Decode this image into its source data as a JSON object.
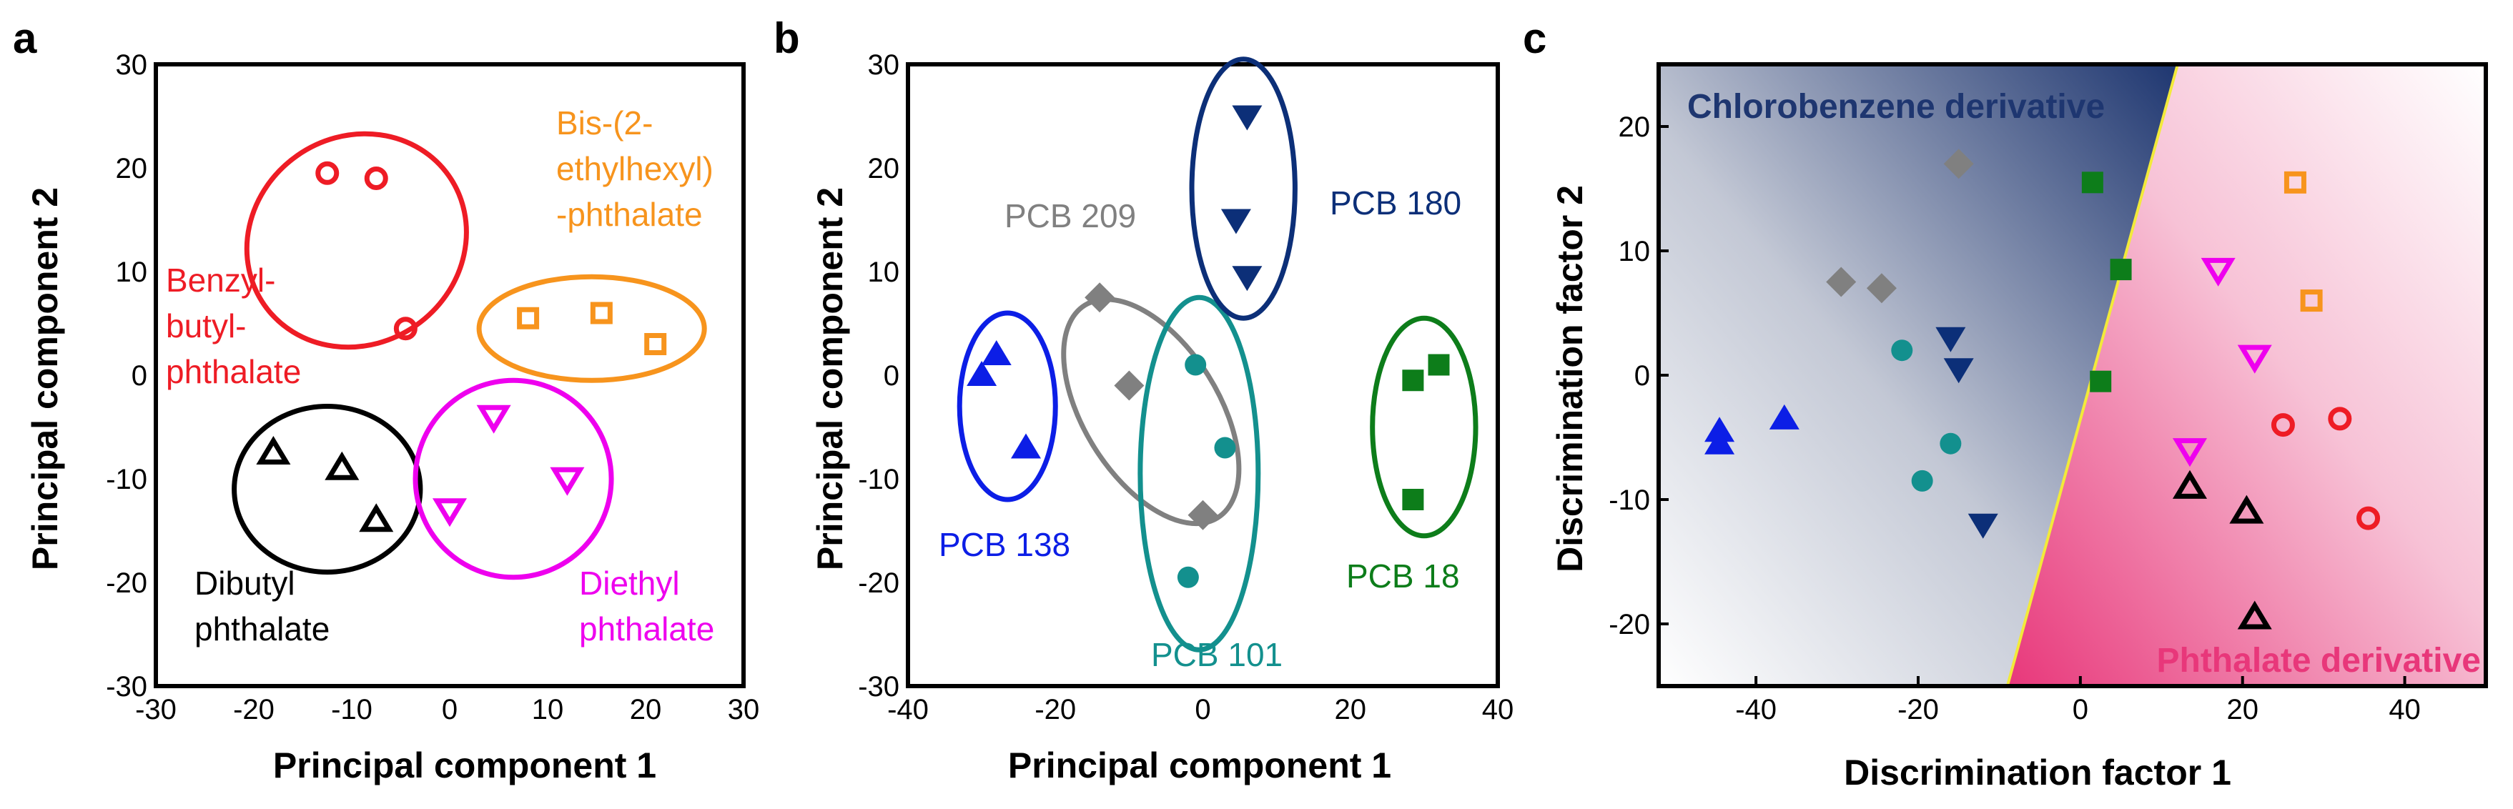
{
  "colors": {
    "red": "#ee1c25",
    "orange": "#f7941d",
    "magenta": "#ee00ee",
    "black": "#000000",
    "blue": "#0c1ee6",
    "gray": "#808080",
    "teal": "#13908e",
    "navy": "#0c2f78",
    "green": "#0d7d1a",
    "region_blue": "#1e3670",
    "region_pink": "#e8377a",
    "divider": "#f2ea3a"
  },
  "chart_data": [
    {
      "type": "scatter",
      "panel_label": "a",
      "xlabel": "Principal component 1",
      "ylabel": "Principal component 2",
      "xlim": [
        -30,
        30
      ],
      "ylim": [
        -30,
        30
      ],
      "xticks": [
        -30,
        -20,
        -10,
        0,
        10,
        20,
        30
      ],
      "yticks": [
        -30,
        -20,
        -10,
        0,
        10,
        20,
        30
      ],
      "series": [
        {
          "name": "Benzyl-butyl-phthalate",
          "label_lines": [
            "Benzyl-",
            "butyl-",
            "phthalate"
          ],
          "marker": "circle-open",
          "color_key": "red",
          "points": [
            [
              -12.5,
              19.5
            ],
            [
              -7.5,
              19
            ],
            [
              -4.5,
              4.5
            ]
          ],
          "ellipse": {
            "cx": -9.5,
            "cy": 13,
            "rx": 11.5,
            "ry": 10,
            "angle": -35
          }
        },
        {
          "name": "Bis-(2-ethylhexyl)-phthalate",
          "label_lines": [
            "Bis-(2-",
            "ethylhexyl)",
            "-phthalate"
          ],
          "marker": "square-open",
          "color_key": "orange",
          "points": [
            [
              8,
              5.5
            ],
            [
              15.5,
              6
            ],
            [
              21,
              3
            ]
          ],
          "ellipse": {
            "cx": 14.5,
            "cy": 4.5,
            "rx": 11.5,
            "ry": 5,
            "angle": 0
          }
        },
        {
          "name": "Dibutyl phthalate",
          "label_lines": [
            "Dibutyl",
            "phthalate"
          ],
          "marker": "triangle-up-open",
          "color_key": "black",
          "points": [
            [
              -18,
              -7.5
            ],
            [
              -11,
              -9
            ],
            [
              -7.5,
              -14
            ]
          ],
          "ellipse": {
            "cx": -12.5,
            "cy": -11,
            "rx": 9.5,
            "ry": 8,
            "angle": 0
          }
        },
        {
          "name": "Diethyl phthalate",
          "label_lines": [
            "Diethyl",
            "phthalate"
          ],
          "marker": "triangle-down-open",
          "color_key": "magenta",
          "points": [
            [
              0,
              -13
            ],
            [
              4.5,
              -4
            ],
            [
              12,
              -10
            ]
          ],
          "ellipse": {
            "cx": 6.5,
            "cy": -10,
            "rx": 10,
            "ry": 9.5,
            "angle": 0
          }
        }
      ]
    },
    {
      "type": "scatter",
      "panel_label": "b",
      "xlabel": "Principal component 1",
      "ylabel": "Principal component 2",
      "xlim": [
        -40,
        40
      ],
      "ylim": [
        -30,
        30
      ],
      "xticks": [
        -40,
        -20,
        0,
        20,
        40
      ],
      "yticks": [
        -30,
        -20,
        -10,
        0,
        10,
        20,
        30
      ],
      "series": [
        {
          "name": "PCB 138",
          "marker": "triangle-up-filled",
          "color_key": "blue",
          "points": [
            [
              -30,
              0
            ],
            [
              -28,
              2
            ],
            [
              -24,
              -7
            ]
          ],
          "ellipse": {
            "cx": -26.5,
            "cy": -3,
            "rx": 6.5,
            "ry": 9,
            "angle": 0
          }
        },
        {
          "name": "PCB 209",
          "marker": "diamond-filled",
          "color_key": "gray",
          "points": [
            [
              -14,
              7.5
            ],
            [
              -10,
              -1
            ],
            [
              0,
              -13.5
            ]
          ],
          "ellipse": {
            "cx": -7,
            "cy": -3.5,
            "rx": 17,
            "ry": 6.5,
            "angle": 58
          }
        },
        {
          "name": "PCB 101",
          "marker": "circle-filled",
          "color_key": "teal",
          "points": [
            [
              -1,
              1
            ],
            [
              3,
              -7
            ],
            [
              -2,
              -19.5
            ]
          ],
          "ellipse": {
            "cx": -0.5,
            "cy": -9.5,
            "rx": 8,
            "ry": 17,
            "angle": 0
          }
        },
        {
          "name": "PCB 180",
          "marker": "triangle-down-filled",
          "color_key": "navy",
          "points": [
            [
              6,
              25
            ],
            [
              4.5,
              15
            ],
            [
              6,
              9.5
            ]
          ],
          "ellipse": {
            "cx": 5.5,
            "cy": 18,
            "rx": 7,
            "ry": 12.5,
            "angle": 0
          }
        },
        {
          "name": "PCB 18",
          "marker": "square-filled",
          "color_key": "green",
          "points": [
            [
              28.5,
              -0.5
            ],
            [
              32,
              1
            ],
            [
              28.5,
              -12
            ]
          ],
          "ellipse": {
            "cx": 30,
            "cy": -5,
            "rx": 7,
            "ry": 10.5,
            "angle": 0
          }
        }
      ]
    },
    {
      "type": "scatter",
      "panel_label": "c",
      "xlabel": "Discrimination factor 1",
      "ylabel": "Discrimination factor 2",
      "xlim": [
        -52,
        50
      ],
      "ylim": [
        -25,
        25
      ],
      "xticks": [
        -40,
        -20,
        0,
        20,
        40
      ],
      "yticks": [
        -20,
        -10,
        0,
        10,
        20
      ],
      "regions": {
        "top_left": "Chlorobenzene derivative",
        "bottom_right": "Phthalate derivative"
      },
      "divider": {
        "from": [
          -9,
          -25
        ],
        "to": [
          12,
          25
        ]
      },
      "series": [
        {
          "name": "PCB 138",
          "marker": "triangle-up-filled",
          "color_key": "blue",
          "points": [
            [
              -44.5,
              -4.5
            ],
            [
              -44.5,
              -5.5
            ],
            [
              -36.5,
              -3.5
            ]
          ]
        },
        {
          "name": "PCB 209",
          "marker": "diamond-filled",
          "color_key": "gray",
          "points": [
            [
              -15,
              17
            ],
            [
              -29.5,
              7.5
            ],
            [
              -24.5,
              7
            ]
          ]
        },
        {
          "name": "PCB 101",
          "marker": "circle-filled",
          "color_key": "teal",
          "points": [
            [
              -22,
              2
            ],
            [
              -16,
              -5.5
            ],
            [
              -19.5,
              -8.5
            ]
          ]
        },
        {
          "name": "PCB 180",
          "marker": "triangle-down-filled",
          "color_key": "navy",
          "points": [
            [
              -16,
              3
            ],
            [
              -15,
              0.5
            ],
            [
              -12,
              -12
            ]
          ]
        },
        {
          "name": "PCB 18",
          "marker": "square-filled",
          "color_key": "green",
          "points": [
            [
              1.5,
              15.5
            ],
            [
              5,
              8.5
            ],
            [
              2.5,
              -0.5
            ]
          ]
        },
        {
          "name": "Bis-(2-ethylhexyl)-phthalate",
          "marker": "square-open",
          "color_key": "orange",
          "points": [
            [
              26.5,
              15.5
            ],
            [
              28.5,
              6
            ]
          ]
        },
        {
          "name": "Diethyl phthalate",
          "marker": "triangle-down-open",
          "color_key": "magenta",
          "points": [
            [
              17,
              8.5
            ],
            [
              21.5,
              1.5
            ],
            [
              13.5,
              -6
            ]
          ]
        },
        {
          "name": "Benzyl-butyl-phthalate",
          "marker": "circle-open",
          "color_key": "red",
          "points": [
            [
              25,
              -4
            ],
            [
              32,
              -3.5
            ],
            [
              35.5,
              -11.5
            ]
          ]
        },
        {
          "name": "Dibutyl phthalate",
          "marker": "triangle-up-open",
          "color_key": "black",
          "points": [
            [
              13.5,
              -9
            ],
            [
              20.5,
              -11
            ],
            [
              21.5,
              -19.5
            ]
          ]
        }
      ]
    }
  ]
}
